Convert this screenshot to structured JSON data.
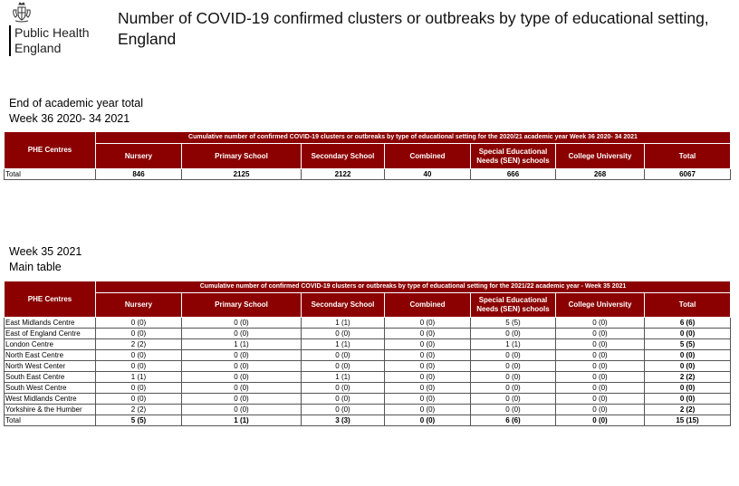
{
  "logo": {
    "line1": "Public Health",
    "line2": "England"
  },
  "title": "Number of COVID-19 confirmed clusters or outbreaks by type of educational setting, England",
  "section1": {
    "heading1": "End of academic year total",
    "heading2": "Week 36 2020- 34 2021",
    "corner_header": "PHE Centres",
    "span_header": "Cumulative number of confirmed COVID-19 clusters or outbreaks by type of educational setting for the 2020/21 academic year Week 36 2020- 34 2021",
    "columns": [
      "Nursery",
      "Primary School",
      "Secondary School",
      "Combined",
      "Special Educational Needs (SEN) schools",
      "College University",
      "Total"
    ],
    "rows": [
      {
        "label": "Total",
        "values": [
          "846",
          "2125",
          "2122",
          "40",
          "666",
          "268",
          "6067"
        ]
      }
    ]
  },
  "section2": {
    "heading1": "Week 35 2021",
    "heading2": "Main table",
    "corner_header": "PHE Centres",
    "span_header": "Cumulative number of confirmed COVID-19 clusters or outbreaks by type of educational setting for the 2021/22 academic year - Week 35 2021",
    "columns": [
      "Nursery",
      "Primary School",
      "Secondary School",
      "Combined",
      "Special Educational Needs (SEN) schools",
      "College University",
      "Total"
    ],
    "rows": [
      {
        "label": "East Midlands Centre",
        "values": [
          "0 (0)",
          "0 (0)",
          "1 (1)",
          "0 (0)",
          "5 (5)",
          "0 (0)",
          "6 (6)"
        ]
      },
      {
        "label": "East of England Centre",
        "values": [
          "0 (0)",
          "0 (0)",
          "0 (0)",
          "0 (0)",
          "0 (0)",
          "0 (0)",
          "0 (0)"
        ]
      },
      {
        "label": "London Centre",
        "values": [
          "2 (2)",
          "1 (1)",
          "1 (1)",
          "0 (0)",
          "1 (1)",
          "0 (0)",
          "5 (5)"
        ]
      },
      {
        "label": "North East Centre",
        "values": [
          "0 (0)",
          "0 (0)",
          "0 (0)",
          "0 (0)",
          "0 (0)",
          "0 (0)",
          "0 (0)"
        ]
      },
      {
        "label": "North West Center",
        "values": [
          "0 (0)",
          "0 (0)",
          "0 (0)",
          "0 (0)",
          "0 (0)",
          "0 (0)",
          "0 (0)"
        ]
      },
      {
        "label": "South East Centre",
        "values": [
          "1 (1)",
          "0 (0)",
          "1 (1)",
          "0 (0)",
          "0 (0)",
          "0 (0)",
          "2 (2)"
        ]
      },
      {
        "label": "South West Centre",
        "values": [
          "0 (0)",
          "0 (0)",
          "0 (0)",
          "0 (0)",
          "0 (0)",
          "0 (0)",
          "0 (0)"
        ]
      },
      {
        "label": "West Midlands Centre",
        "values": [
          "0 (0)",
          "0 (0)",
          "0 (0)",
          "0 (0)",
          "0 (0)",
          "0 (0)",
          "0 (0)"
        ]
      },
      {
        "label": "Yorkshire & the Humber",
        "values": [
          "2 (2)",
          "0 (0)",
          "0 (0)",
          "0 (0)",
          "0 (0)",
          "0 (0)",
          "2 (2)"
        ]
      }
    ],
    "total_row": {
      "label": "Total",
      "values": [
        "5 (5)",
        "1 (1)",
        "3 (3)",
        "0 (0)",
        "6 (6)",
        "0 (0)",
        "15 (15)"
      ]
    }
  },
  "colors": {
    "header_bg": "#8b0000",
    "header_text": "#ffffff",
    "border": "#555555"
  }
}
